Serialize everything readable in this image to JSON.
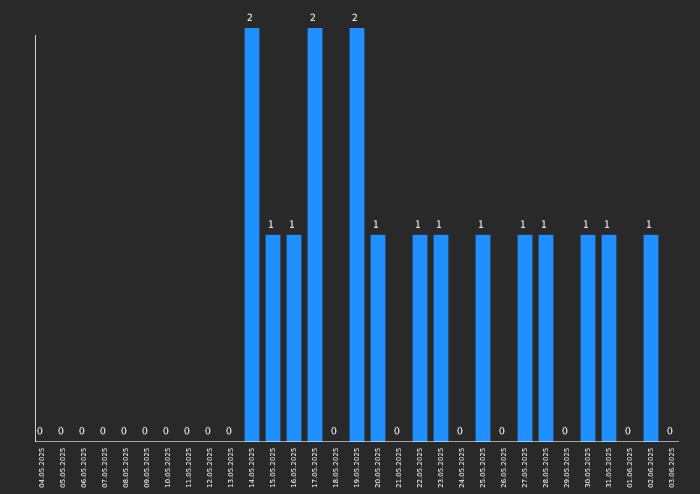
{
  "chart_data": {
    "type": "bar",
    "title": "",
    "xlabel": "",
    "ylabel": "",
    "categories": [
      "04.05.2025",
      "05.05.2025",
      "06.05.2025",
      "07.05.2025",
      "08.05.2025",
      "09.05.2025",
      "10.05.2025",
      "11.05.2025",
      "12.05.2025",
      "13.05.2025",
      "14.05.2025",
      "15.05.2025",
      "16.05.2025",
      "17.05.2025",
      "18.05.2025",
      "19.05.2025",
      "20.05.2025",
      "21.05.2025",
      "22.05.2025",
      "23.05.2025",
      "24.05.2025",
      "25.05.2025",
      "26.05.2025",
      "27.05.2025",
      "28.05.2025",
      "29.05.2025",
      "30.05.2025",
      "31.05.2025",
      "01.06.2025",
      "02.06.2025",
      "03.06.2025"
    ],
    "values": [
      0,
      0,
      0,
      0,
      0,
      0,
      0,
      0,
      0,
      0,
      2,
      1,
      1,
      2,
      0,
      2,
      1,
      0,
      1,
      1,
      0,
      1,
      0,
      1,
      1,
      0,
      1,
      1,
      0,
      1,
      0
    ],
    "ylim": [
      0,
      2
    ],
    "grid": false,
    "legend": "none",
    "show_value_labels": true
  },
  "colors": {
    "background": "#292929",
    "bar": "#1e90ff",
    "axis": "#ffffff",
    "text": "#ffffff"
  }
}
